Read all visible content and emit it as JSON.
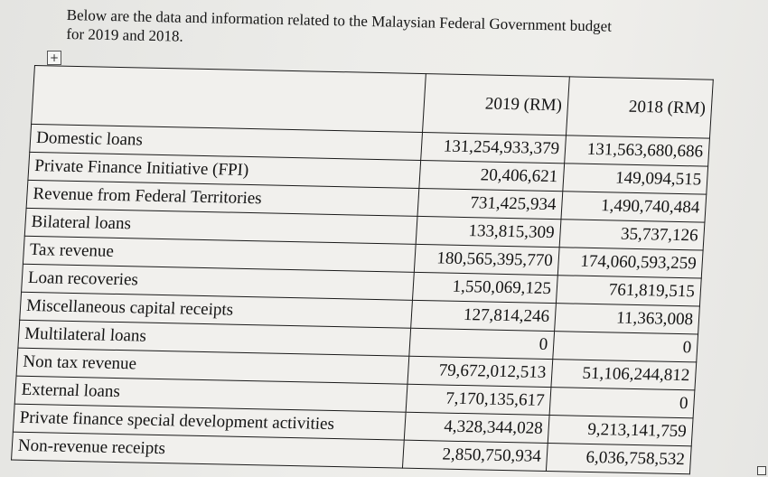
{
  "intro": {
    "line1": "Below are the data and information related to the Malaysian Federal Government budget",
    "line2": "for 2019 and 2018."
  },
  "move_handle_symbol": "+",
  "table": {
    "headers": [
      "",
      "2019  (RM)",
      "2018  (RM)"
    ],
    "rows": [
      {
        "label": "Domestic loans",
        "y2019": "131,254,933,379",
        "y2018": "131,563,680,686"
      },
      {
        "label": "Private Finance Initiative (FPI)",
        "y2019": "20,406,621",
        "y2018": "149,094,515"
      },
      {
        "label": "Revenue from Federal Territories",
        "y2019": "731,425,934",
        "y2018": "1,490,740,484"
      },
      {
        "label": "Bilateral loans",
        "y2019": "133,815,309",
        "y2018": "35,737,126"
      },
      {
        "label": "Tax revenue",
        "y2019": "180,565,395,770",
        "y2018": "174,060,593,259"
      },
      {
        "label": "Loan recoveries",
        "y2019": "1,550,069,125",
        "y2018": "761,819,515"
      },
      {
        "label": "Miscellaneous capital receipts",
        "y2019": "127,814,246",
        "y2018": "11,363,008"
      },
      {
        "label": "Multilateral loans",
        "y2019": "0",
        "y2018": "0"
      },
      {
        "label": "Non tax revenue",
        "y2019": "79,672,012,513",
        "y2018": "51,106,244,812"
      },
      {
        "label": "External loans",
        "y2019": "7,170,135,617",
        "y2018": "0"
      },
      {
        "label": "Private finance special development activities",
        "y2019": "4,328,344,028",
        "y2018": "9,213,141,759"
      },
      {
        "label": "Non-revenue receipts",
        "y2019": "2,850,750,934",
        "y2018": "6,036,758,532"
      }
    ]
  }
}
